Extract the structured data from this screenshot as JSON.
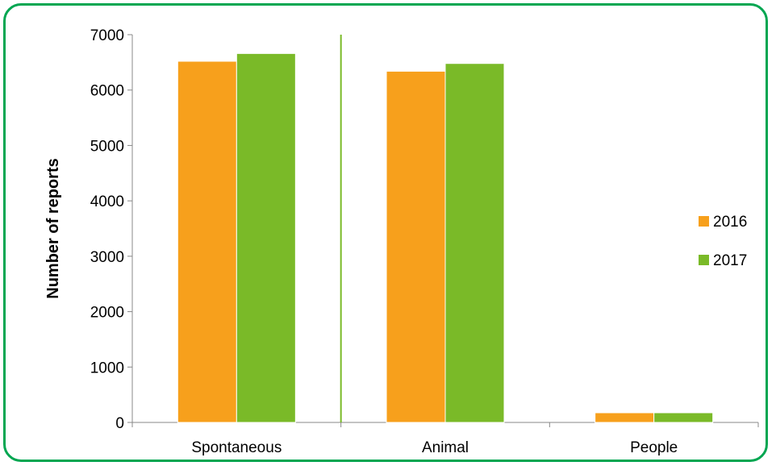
{
  "chart_data": {
    "type": "bar",
    "categories": [
      "Spontaneous",
      "Animal",
      "People"
    ],
    "series": [
      {
        "name": "2016",
        "values": [
          6520,
          6340,
          175
        ],
        "color": "#f7a01c"
      },
      {
        "name": "2017",
        "values": [
          6660,
          6480,
          175
        ],
        "color": "#7aba28"
      }
    ],
    "ylabel": "Number of reports",
    "ylim": [
      0,
      7000
    ],
    "yticks": [
      0,
      1000,
      2000,
      3000,
      4000,
      5000,
      6000,
      7000
    ],
    "grid": false,
    "legend_position": "right",
    "annotation": {
      "type": "vertical-line",
      "between_categories": [
        "Spontaneous",
        "Animal"
      ],
      "color": "#7aba28"
    }
  },
  "colors": {
    "frame_border": "#00a651",
    "axis": "#888888"
  }
}
